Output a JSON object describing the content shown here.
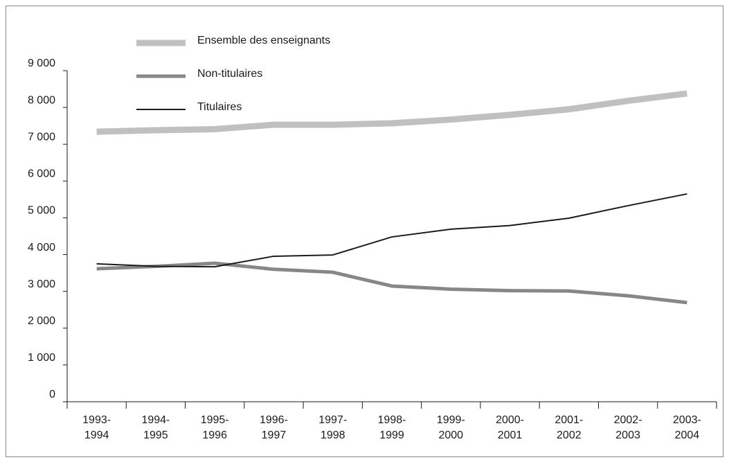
{
  "chart_data": {
    "type": "line",
    "categories": [
      "1993-1994",
      "1994-1995",
      "1995-1996",
      "1996-1997",
      "1997-1998",
      "1998-1999",
      "1999-2000",
      "2000-2001",
      "2001-2002",
      "2002-2003",
      "2003-2004"
    ],
    "series": [
      {
        "name": "Ensemble des enseignants",
        "color": "#c0c0c0",
        "values": [
          7340,
          7380,
          7410,
          7530,
          7530,
          7570,
          7670,
          7800,
          7950,
          8180,
          8380
        ]
      },
      {
        "name": "Non-titulaires",
        "color": "#878787",
        "values": [
          3615,
          3680,
          3765,
          3600,
          3520,
          3145,
          3060,
          3020,
          3010,
          2880,
          2695
        ]
      },
      {
        "name": "Titulaires",
        "color": "#1a1a1a",
        "values": [
          3750,
          3680,
          3670,
          3955,
          3990,
          4480,
          4690,
          4790,
          4990,
          5330,
          5650
        ]
      }
    ],
    "ylim": [
      0,
      9000
    ],
    "yticks": [
      0,
      {
        "value": 1000,
        "label": "1 000"
      },
      {
        "value": 2000,
        "label": "2 000"
      },
      {
        "value": 3000,
        "label": "3 000"
      },
      {
        "value": 4000,
        "label": "4 000"
      },
      {
        "value": 5000,
        "label": "5 000"
      },
      {
        "value": 6000,
        "label": "6 000"
      },
      {
        "value": 7000,
        "label": "7 000"
      },
      {
        "value": 8000,
        "label": "8 000"
      },
      {
        "value": 9000,
        "label": "9 000"
      }
    ],
    "legend": "upper left"
  }
}
